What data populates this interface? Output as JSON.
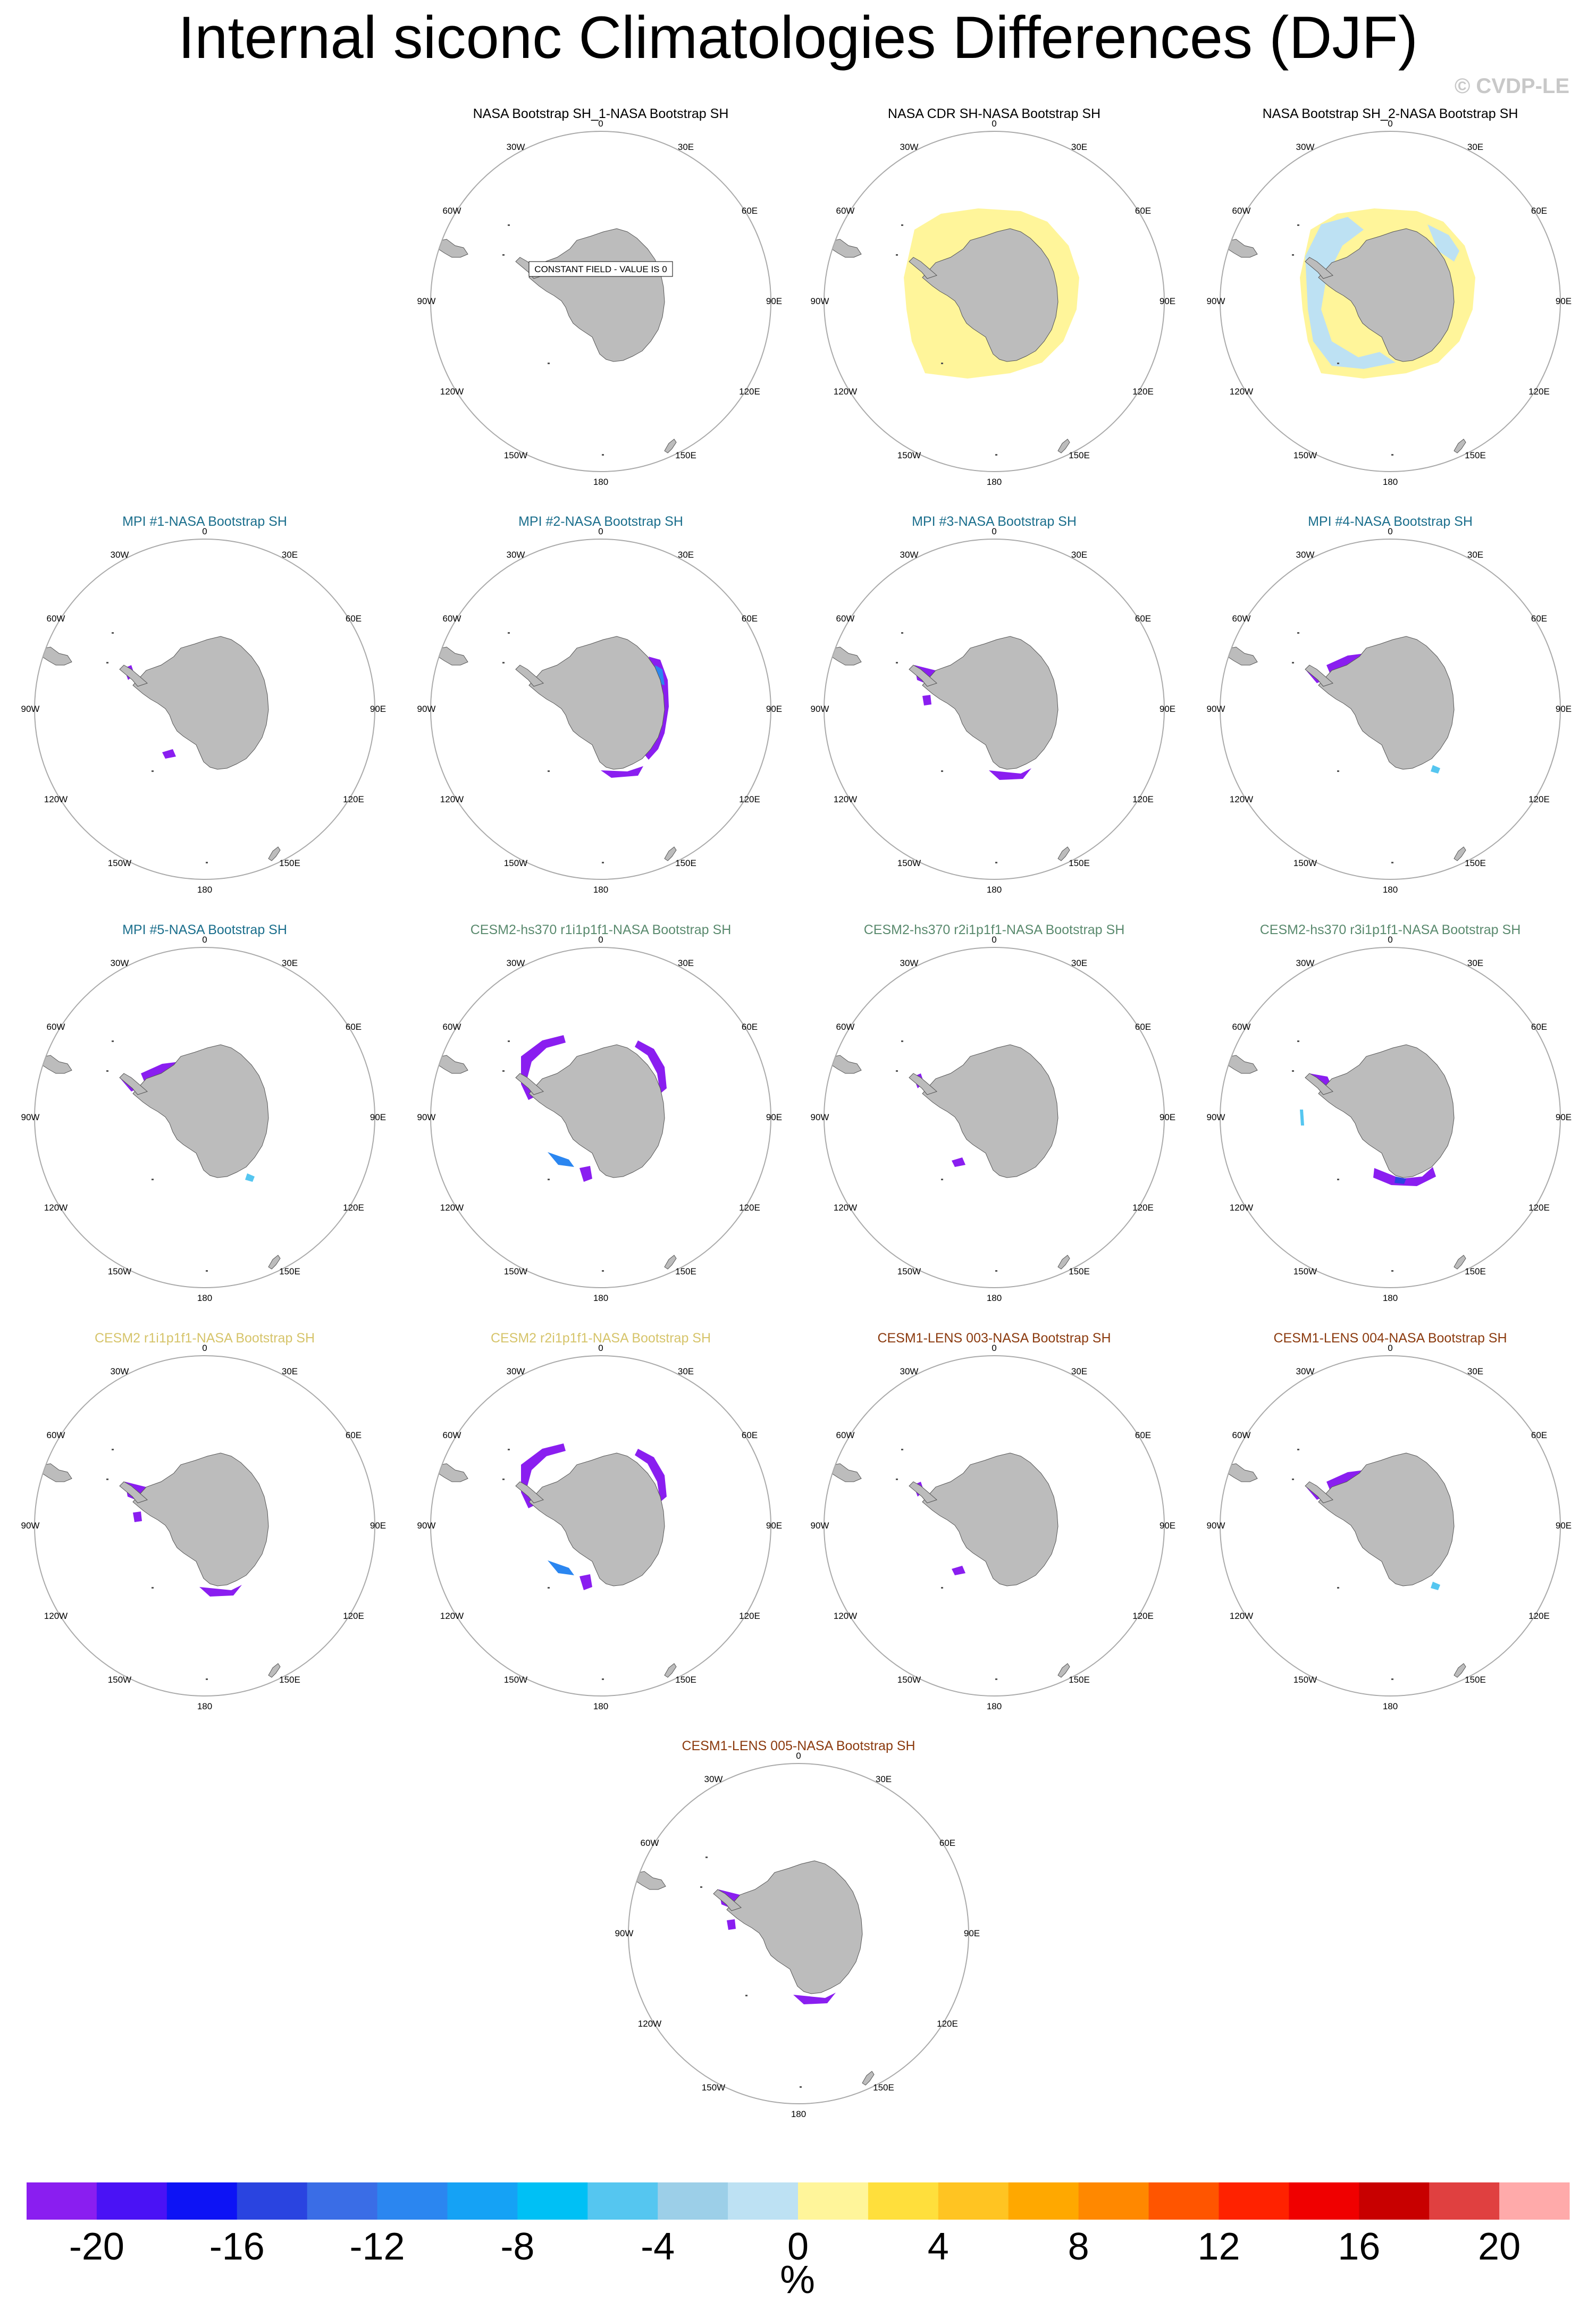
{
  "title": "Internal siconc Climatologies Differences (DJF)",
  "copyright": "© CVDP-LE",
  "lon_labels": {
    "top": "0",
    "n30e": "30E",
    "n60e": "60E",
    "e90": "90E",
    "s120e": "120E",
    "s150e": "150E",
    "bottom": "180",
    "s150w": "150W",
    "s120w": "120W",
    "w90": "90W",
    "n60w": "60W",
    "n30w": "30W"
  },
  "panels": [
    {
      "title": "NASA Bootstrap SH_1-NASA Bootstrap SH",
      "title_color": "#000000",
      "note": "CONSTANT FIELD - VALUE IS 0",
      "anomaly": "none"
    },
    {
      "title": "NASA CDR SH-NASA Bootstrap SH",
      "title_color": "#000000",
      "note": "",
      "anomaly": "positive ring"
    },
    {
      "title": "NASA Bootstrap SH_2-NASA Bootstrap SH",
      "title_color": "#000000",
      "note": "",
      "anomaly": "mixed ring"
    },
    {
      "title": "MPI #1-NASA Bootstrap SH",
      "title_color": "#1a6e8c",
      "note": "",
      "anomaly": "small negative"
    },
    {
      "title": "MPI #2-NASA Bootstrap SH",
      "title_color": "#1a6e8c",
      "note": "",
      "anomaly": "negative east"
    },
    {
      "title": "MPI #3-NASA Bootstrap SH",
      "title_color": "#1a6e8c",
      "note": "",
      "anomaly": "negative west"
    },
    {
      "title": "MPI #4-NASA Bootstrap SH",
      "title_color": "#1a6e8c",
      "note": "",
      "anomaly": "negative weddell"
    },
    {
      "title": "MPI #5-NASA Bootstrap SH",
      "title_color": "#1a6e8c",
      "note": "",
      "anomaly": "negative weddell"
    },
    {
      "title": "CESM2-hs370 r1i1p1f1-NASA Bootstrap SH",
      "title_color": "#5a8a6e",
      "note": "",
      "anomaly": "negative ring"
    },
    {
      "title": "CESM2-hs370 r2i1p1f1-NASA Bootstrap SH",
      "title_color": "#5a8a6e",
      "note": "",
      "anomaly": "small negative"
    },
    {
      "title": "CESM2-hs370 r3i1p1f1-NASA Bootstrap SH",
      "title_color": "#5a8a6e",
      "note": "",
      "anomaly": "negative ross"
    },
    {
      "title": "CESM2 r1i1p1f1-NASA Bootstrap SH",
      "title_color": "#d6c46a",
      "note": "",
      "anomaly": "negative west"
    },
    {
      "title": "CESM2 r2i1p1f1-NASA Bootstrap SH",
      "title_color": "#d6c46a",
      "note": "",
      "anomaly": "negative ring"
    },
    {
      "title": "CESM1-LENS 003-NASA Bootstrap SH",
      "title_color": "#8b3a0e",
      "note": "",
      "anomaly": "small negative"
    },
    {
      "title": "CESM1-LENS 004-NASA Bootstrap SH",
      "title_color": "#8b3a0e",
      "note": "",
      "anomaly": "negative weddell"
    },
    {
      "title": "CESM1-LENS 005-NASA Bootstrap SH",
      "title_color": "#8b3a0e",
      "note": "",
      "anomaly": "negative west"
    }
  ],
  "colorbar": {
    "colors": [
      "#8a1ef0",
      "#4a12f5",
      "#0d13f5",
      "#2a44e0",
      "#3a6de6",
      "#2b86f0",
      "#15a2f5",
      "#00c0f5",
      "#55c6f0",
      "#9ccfe8",
      "#bde1f3",
      "#fff59a",
      "#ffdf3c",
      "#ffc422",
      "#ffa800",
      "#ff8800",
      "#ff5500",
      "#ff2200",
      "#f00000",
      "#c80000",
      "#e04040",
      "#ffaaaa"
    ],
    "labels": [
      "-20",
      "-16",
      "-12",
      "-8",
      "-4",
      "0",
      "4",
      "8",
      "12",
      "16",
      "20"
    ],
    "units": "%"
  },
  "chart_data": {
    "type": "heatmap",
    "title": "Internal siconc Climatologies Differences (DJF)",
    "projection": "south polar stereographic",
    "season": "DJF",
    "variable": "siconc",
    "units": "%",
    "color_levels": [
      -20,
      -18,
      -16,
      -14,
      -12,
      -10,
      -8,
      -6,
      -4,
      -2,
      0,
      2,
      4,
      6,
      8,
      10,
      12,
      14,
      16,
      18,
      20
    ],
    "colorbar_range": [
      -20,
      20
    ],
    "panel_count": 16,
    "panel_titles": [
      "NASA Bootstrap SH_1-NASA Bootstrap SH",
      "NASA CDR SH-NASA Bootstrap SH",
      "NASA Bootstrap SH_2-NASA Bootstrap SH",
      "MPI #1-NASA Bootstrap SH",
      "MPI #2-NASA Bootstrap SH",
      "MPI #3-NASA Bootstrap SH",
      "MPI #4-NASA Bootstrap SH",
      "MPI #5-NASA Bootstrap SH",
      "CESM2-hs370 r1i1p1f1-NASA Bootstrap SH",
      "CESM2-hs370 r2i1p1f1-NASA Bootstrap SH",
      "CESM2-hs370 r3i1p1f1-NASA Bootstrap SH",
      "CESM2 r1i1p1f1-NASA Bootstrap SH",
      "CESM2 r2i1p1f1-NASA Bootstrap SH",
      "CESM1-LENS 003-NASA Bootstrap SH",
      "CESM1-LENS 004-NASA Bootstrap SH",
      "CESM1-LENS 005-NASA Bootstrap SH"
    ]
  }
}
